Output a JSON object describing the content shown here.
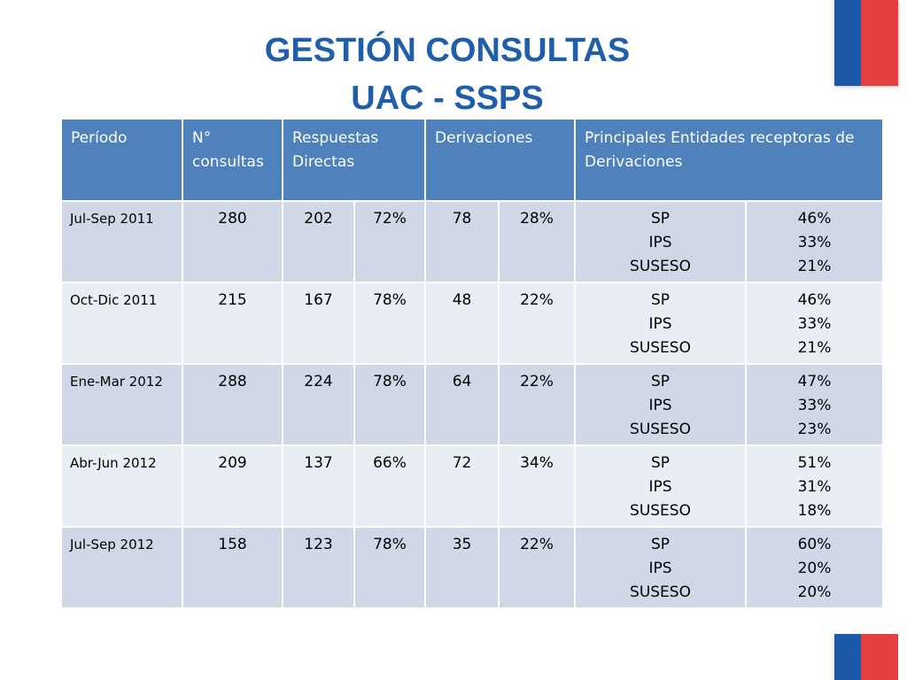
{
  "header": {
    "title_line1": "GESTIÓN CONSULTAS",
    "title_line2": "UAC - SSPS"
  },
  "colors": {
    "title": "#1f5fa9",
    "header_bg": "#4f81bd",
    "row_dark": "#d0d8e8",
    "row_light": "#e9edf4",
    "flag_blue": "#1b5aa8",
    "flag_red": "#e5403f"
  },
  "table": {
    "headers": {
      "period": "Período",
      "consultas": "N° consultas",
      "respuestas": "Respuestas Directas",
      "derivaciones": "Derivaciones",
      "entidades": "Principales  Entidades receptoras de Derivaciones"
    },
    "rows": [
      {
        "period": "Jul-Sep 2011",
        "consultas": "280",
        "resp_n": "202",
        "resp_pct": "72%",
        "der_n": "78",
        "der_pct": "28%",
        "entities": [
          "SP",
          "IPS",
          "SUSESO"
        ],
        "entity_pcts": [
          "46%",
          "33%",
          "21%"
        ]
      },
      {
        "period": "Oct-Dic 2011",
        "consultas": "215",
        "resp_n": "167",
        "resp_pct": "78%",
        "der_n": "48",
        "der_pct": "22%",
        "entities": [
          "SP",
          "IPS",
          "SUSESO"
        ],
        "entity_pcts": [
          "46%",
          "33%",
          "21%"
        ]
      },
      {
        "period": "Ene-Mar 2012",
        "consultas": "288",
        "resp_n": "224",
        "resp_pct": "78%",
        "der_n": "64",
        "der_pct": "22%",
        "entities": [
          "SP",
          "IPS",
          "SUSESO"
        ],
        "entity_pcts": [
          "47%",
          "33%",
          "23%"
        ]
      },
      {
        "period": "Abr-Jun 2012",
        "consultas": "209",
        "resp_n": "137",
        "resp_pct": "66%",
        "der_n": "72",
        "der_pct": "34%",
        "entities": [
          "SP",
          "IPS",
          "SUSESO"
        ],
        "entity_pcts": [
          "51%",
          "31%",
          "18%"
        ]
      },
      {
        "period": "Jul-Sep 2012",
        "consultas": "158",
        "resp_n": "123",
        "resp_pct": "78%",
        "der_n": "35",
        "der_pct": "22%",
        "entities": [
          "SP",
          "IPS",
          "SUSESO"
        ],
        "entity_pcts": [
          "60%",
          "20%",
          "20%"
        ]
      }
    ]
  }
}
